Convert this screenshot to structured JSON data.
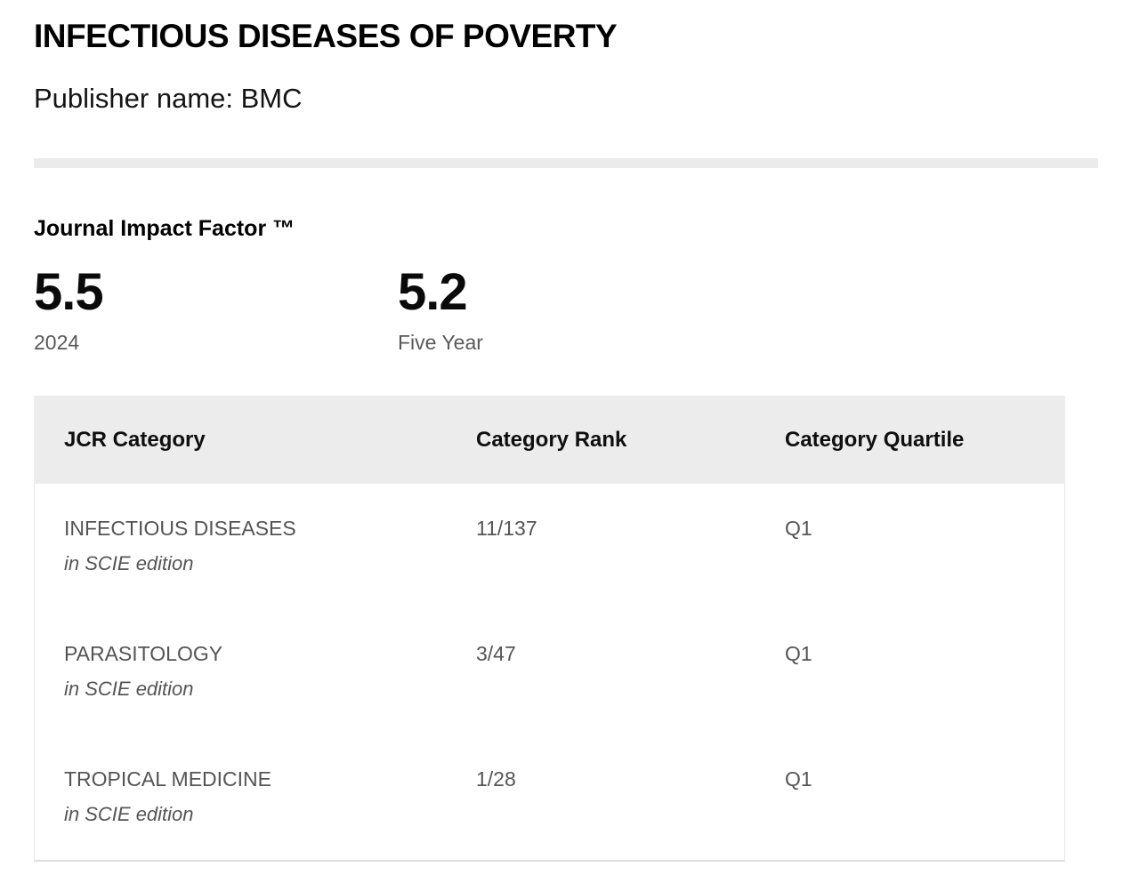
{
  "header": {
    "journal_title": "INFECTIOUS DISEASES OF POVERTY",
    "publisher_line": "Publisher name: BMC"
  },
  "impact_factor": {
    "section_title": "Journal Impact Factor ™",
    "metrics": [
      {
        "value": "5.5",
        "label": "2024"
      },
      {
        "value": "5.2",
        "label": "Five Year"
      }
    ]
  },
  "table": {
    "columns": [
      "JCR Category",
      "Category Rank",
      "Category Quartile"
    ],
    "rows": [
      {
        "category": "INFECTIOUS DISEASES",
        "edition": "in SCIE edition",
        "rank": "11/137",
        "quartile": "Q1"
      },
      {
        "category": "PARASITOLOGY",
        "edition": "in SCIE edition",
        "rank": "3/47",
        "quartile": "Q1"
      },
      {
        "category": "TROPICAL MEDICINE",
        "edition": "in SCIE edition",
        "rank": "1/28",
        "quartile": "Q1"
      }
    ]
  },
  "colors": {
    "divider": "#ebebeb",
    "table_header_bg": "#ececec",
    "table_border": "#e7e7e7",
    "muted_text": "#555555",
    "heading_text": "#000000"
  }
}
